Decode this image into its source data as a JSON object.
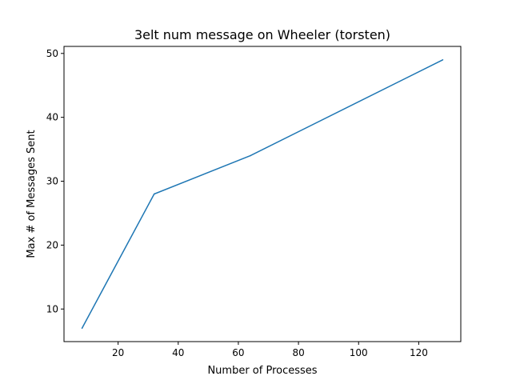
{
  "chart_data": {
    "type": "line",
    "title": "3elt num message on Wheeler (torsten)",
    "xlabel": "Number of Processes",
    "ylabel": "Max # of Messages Sent",
    "xlim": [
      2,
      134
    ],
    "ylim": [
      4.9,
      51.1
    ],
    "xticks": [
      20,
      40,
      60,
      80,
      100,
      120
    ],
    "yticks": [
      10,
      20,
      30,
      40,
      50
    ],
    "grid": false,
    "series": [
      {
        "color": "#1f77b4",
        "x": [
          8,
          32,
          64,
          128
        ],
        "y": [
          7,
          28,
          34,
          49
        ]
      }
    ]
  }
}
